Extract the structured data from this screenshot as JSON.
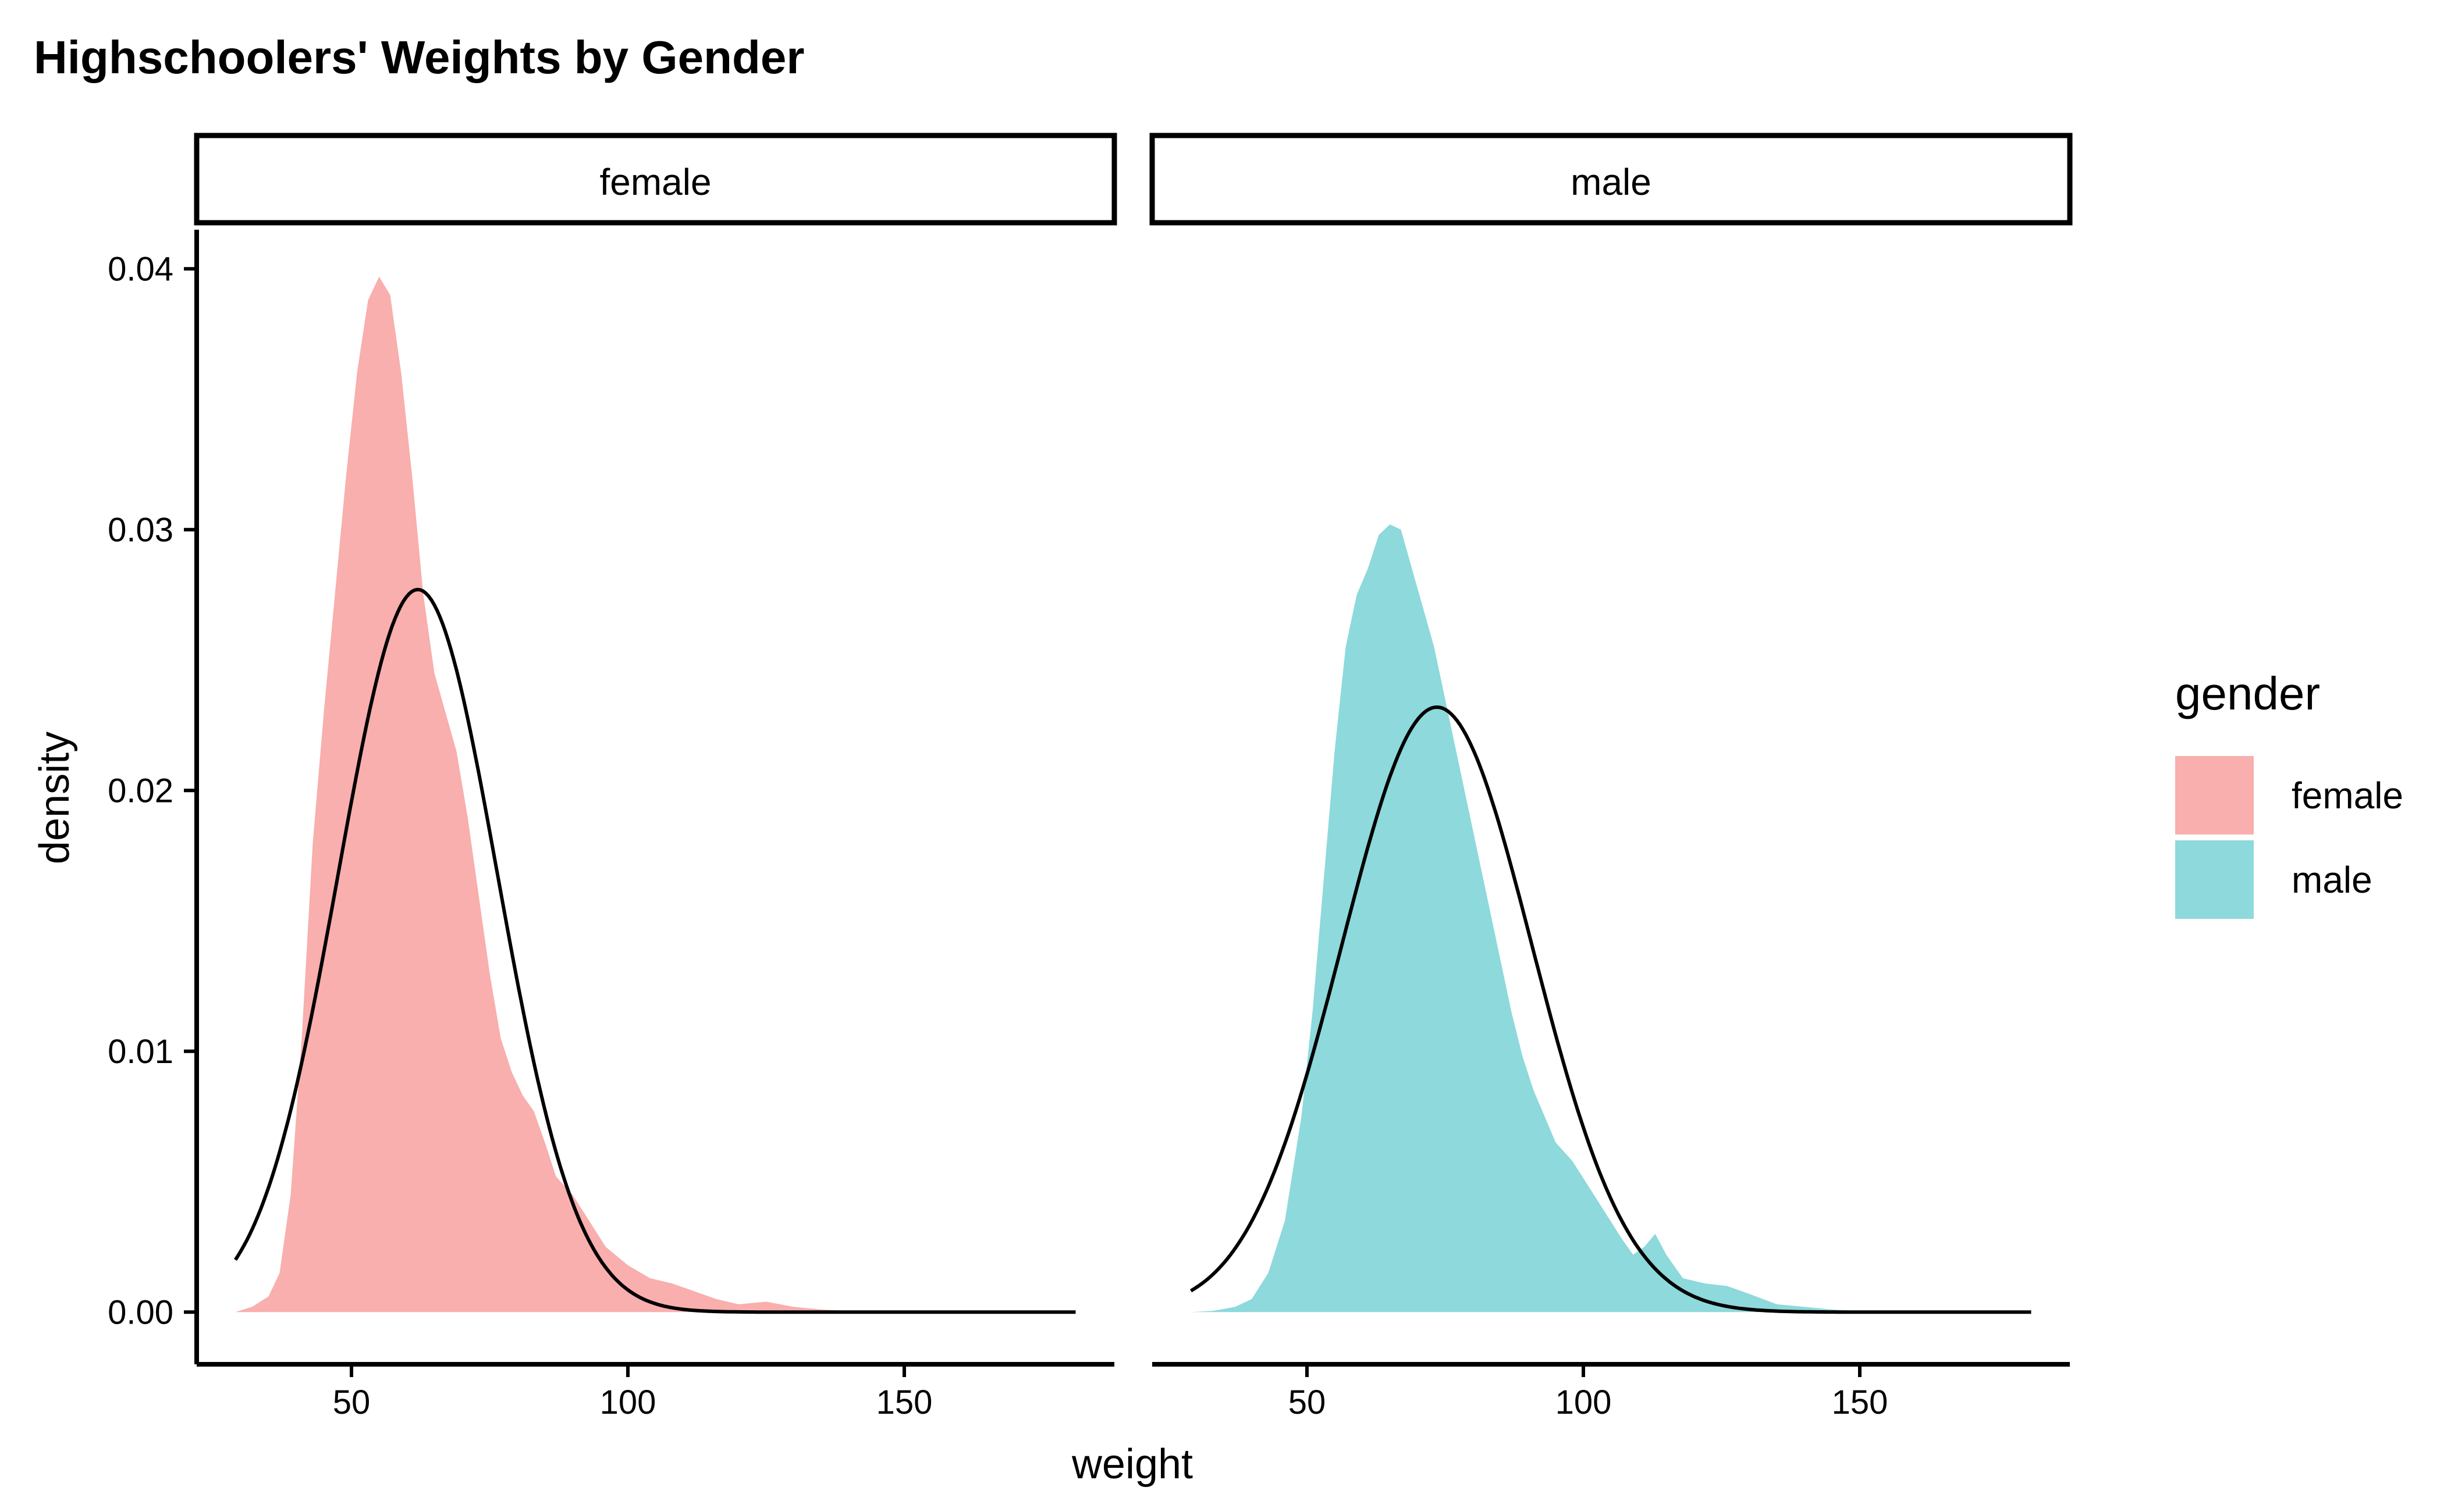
{
  "chart_data": {
    "type": "area",
    "title": "Highschoolers' Weights by Gender",
    "xlabel": "weight",
    "ylabel": "density",
    "xlim": [
      22,
      188
    ],
    "ylim": [
      -0.002,
      0.0415
    ],
    "x_ticks": [
      {
        "value": 50,
        "label": "50"
      },
      {
        "value": 100,
        "label": "100"
      },
      {
        "value": 150,
        "label": "150"
      }
    ],
    "y_ticks": [
      {
        "value": 0,
        "label": "0.00"
      },
      {
        "value": 0.01,
        "label": "0.01"
      },
      {
        "value": 0.02,
        "label": "0.02"
      },
      {
        "value": 0.03,
        "label": "0.03"
      },
      {
        "value": 0.04,
        "label": "0.04"
      }
    ],
    "grid": false,
    "legend": {
      "title": "gender",
      "placement": "right",
      "entries": [
        {
          "label": "female",
          "color": "#F8AFAD"
        },
        {
          "label": "male",
          "color": "#8DD9DC"
        }
      ]
    },
    "facets": [
      {
        "label": "female",
        "fill_color": "#F8AFAD",
        "density": {
          "x": [
            29,
            32,
            35,
            37,
            39,
            41,
            43,
            45,
            47,
            49,
            51,
            53,
            55,
            57,
            59,
            61,
            63,
            65,
            67,
            69,
            71,
            73,
            75,
            77,
            79,
            81,
            83,
            85,
            87,
            90,
            93,
            96,
            100,
            104,
            108,
            112,
            116,
            120,
            125,
            130,
            135,
            140,
            150,
            160,
            181
          ],
          "y": [
            0,
            0.0002,
            0.0006,
            0.0015,
            0.0045,
            0.0105,
            0.018,
            0.023,
            0.0275,
            0.032,
            0.036,
            0.0388,
            0.0397,
            0.039,
            0.036,
            0.032,
            0.0275,
            0.0245,
            0.023,
            0.0215,
            0.019,
            0.016,
            0.013,
            0.0105,
            0.0092,
            0.0083,
            0.0077,
            0.0065,
            0.0052,
            0.0045,
            0.0035,
            0.0025,
            0.0018,
            0.0013,
            0.0011,
            0.0008,
            0.0005,
            0.0003,
            0.0004,
            0.0002,
            0.0001,
            5e-05,
            0,
            0,
            0
          ]
        },
        "normal_curve": {
          "mean": 62,
          "sd": 14.4,
          "x_range": [
            29,
            181
          ]
        }
      },
      {
        "label": "male",
        "fill_color": "#8DD9DC",
        "density": {
          "x": [
            29,
            33,
            37,
            40,
            43,
            46,
            49,
            51,
            53,
            55,
            57,
            59,
            61,
            63,
            65,
            67,
            69,
            71,
            73,
            75,
            77,
            79,
            81,
            83,
            85,
            87,
            89,
            91,
            93,
            95,
            98,
            101,
            104,
            107,
            109,
            111,
            113,
            115,
            118,
            122,
            126,
            130,
            135,
            140,
            145,
            150,
            160,
            181
          ],
          "y": [
            0,
            5e-05,
            0.0002,
            0.0005,
            0.0015,
            0.0035,
            0.0075,
            0.0115,
            0.0165,
            0.0215,
            0.0255,
            0.0275,
            0.0285,
            0.0298,
            0.0302,
            0.03,
            0.0285,
            0.027,
            0.0255,
            0.0235,
            0.0215,
            0.0195,
            0.0175,
            0.0155,
            0.0135,
            0.0115,
            0.0098,
            0.0085,
            0.0075,
            0.0065,
            0.0058,
            0.0048,
            0.0038,
            0.0028,
            0.0022,
            0.0025,
            0.003,
            0.0022,
            0.0013,
            0.0011,
            0.001,
            0.0007,
            0.0003,
            0.0002,
            0.0001,
            5e-05,
            0,
            0
          ]
        },
        "normal_curve": {
          "mean": 73.5,
          "sd": 17.2,
          "x_range": [
            29,
            181
          ]
        }
      }
    ]
  }
}
